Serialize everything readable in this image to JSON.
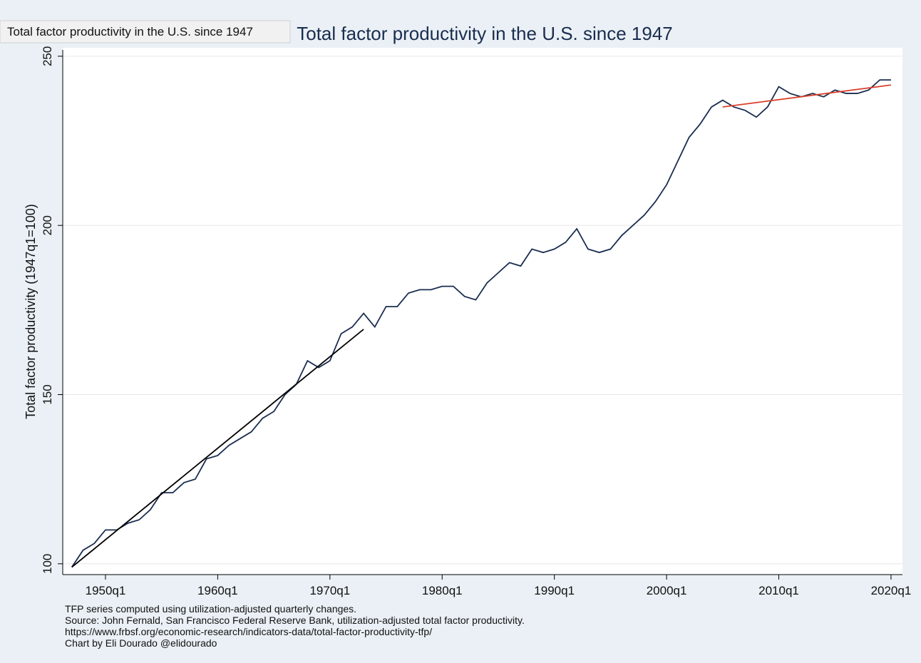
{
  "tooltip": "Total factor productivity in the U.S. since 1947",
  "chart_data": {
    "type": "line",
    "title": "Total factor productivity in the U.S. since 1947",
    "ylabel": "Total factor productivity (1947q1=100)",
    "notes": [
      "TFP series computed using utilization-adjusted quarterly changes.",
      "Source: John Fernald, San Francisco Federal Reserve Bank, utilization-adjusted total factor productivity.",
      "https://www.frbsf.org/economic-research/indicators-data/total-factor-productivity-tfp/",
      "Chart by Eli Dourado @elidourado"
    ],
    "xlim": [
      1946.19,
      2021.02
    ],
    "ylim": [
      96.8,
      252.5
    ],
    "xticks": [
      {
        "value": 1950,
        "label": "1950q1"
      },
      {
        "value": 1960,
        "label": "1960q1"
      },
      {
        "value": 1970,
        "label": "1970q1"
      },
      {
        "value": 1980,
        "label": "1980q1"
      },
      {
        "value": 1990,
        "label": "1990q1"
      },
      {
        "value": 2000,
        "label": "2000q1"
      },
      {
        "value": 2010,
        "label": "2010q1"
      },
      {
        "value": 2020,
        "label": "2020q1"
      }
    ],
    "yticks": [
      100,
      150,
      200,
      250
    ],
    "grid": true,
    "series": [
      {
        "color": "#1a2d4f",
        "x": [
          1947,
          1948,
          1949,
          1950,
          1951,
          1952,
          1953,
          1954,
          1955,
          1956,
          1957,
          1958,
          1959,
          1960,
          1961,
          1962,
          1963,
          1964,
          1965,
          1966,
          1967,
          1968,
          1969,
          1970,
          1971,
          1972,
          1973,
          1974,
          1975,
          1976,
          1977,
          1978,
          1979,
          1980,
          1981,
          1982,
          1983,
          1984,
          1985,
          1986,
          1987,
          1988,
          1989,
          1990,
          1991,
          1992,
          1993,
          1994,
          1995,
          1996,
          1997,
          1998,
          1999,
          2000,
          2001,
          2002,
          2003,
          2004,
          2005,
          2006,
          2007,
          2008,
          2009,
          2010,
          2011,
          2012,
          2013,
          2014,
          2015,
          2016,
          2017,
          2018,
          2019,
          2020
        ],
        "values": [
          99,
          104,
          106,
          110,
          110,
          112,
          113,
          116,
          121,
          121,
          124,
          125,
          131,
          132,
          135,
          137,
          139,
          143,
          145,
          150,
          153,
          160,
          158,
          160,
          168,
          170,
          174,
          170,
          176,
          176,
          180,
          181,
          181,
          182,
          182,
          179,
          178,
          183,
          186,
          189,
          188,
          193,
          192,
          193,
          195,
          199,
          193,
          192,
          193,
          197,
          200,
          203,
          207,
          212,
          219,
          226,
          230,
          235,
          237,
          235,
          234,
          232,
          235,
          241,
          239,
          238,
          239,
          238,
          240,
          239,
          239,
          240,
          243,
          243
        ]
      },
      {
        "color": "#000000",
        "x": [
          1947,
          1973
        ],
        "values": [
          99,
          169.3
        ]
      },
      {
        "color": "#d9412b",
        "x": [
          2005,
          2020
        ],
        "values": [
          235,
          241.5
        ]
      }
    ]
  }
}
